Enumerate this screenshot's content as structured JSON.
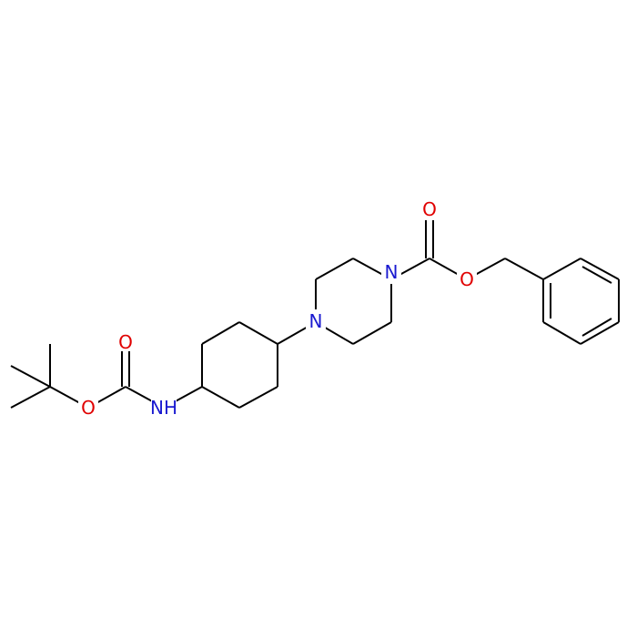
{
  "atoms": [
    {
      "label": "O"
    },
    {
      "label": "O"
    },
    {
      "label": "NH"
    },
    {
      "label": "N"
    },
    {
      "label": "N"
    },
    {
      "label": "O"
    },
    {
      "label": "O"
    }
  ]
}
